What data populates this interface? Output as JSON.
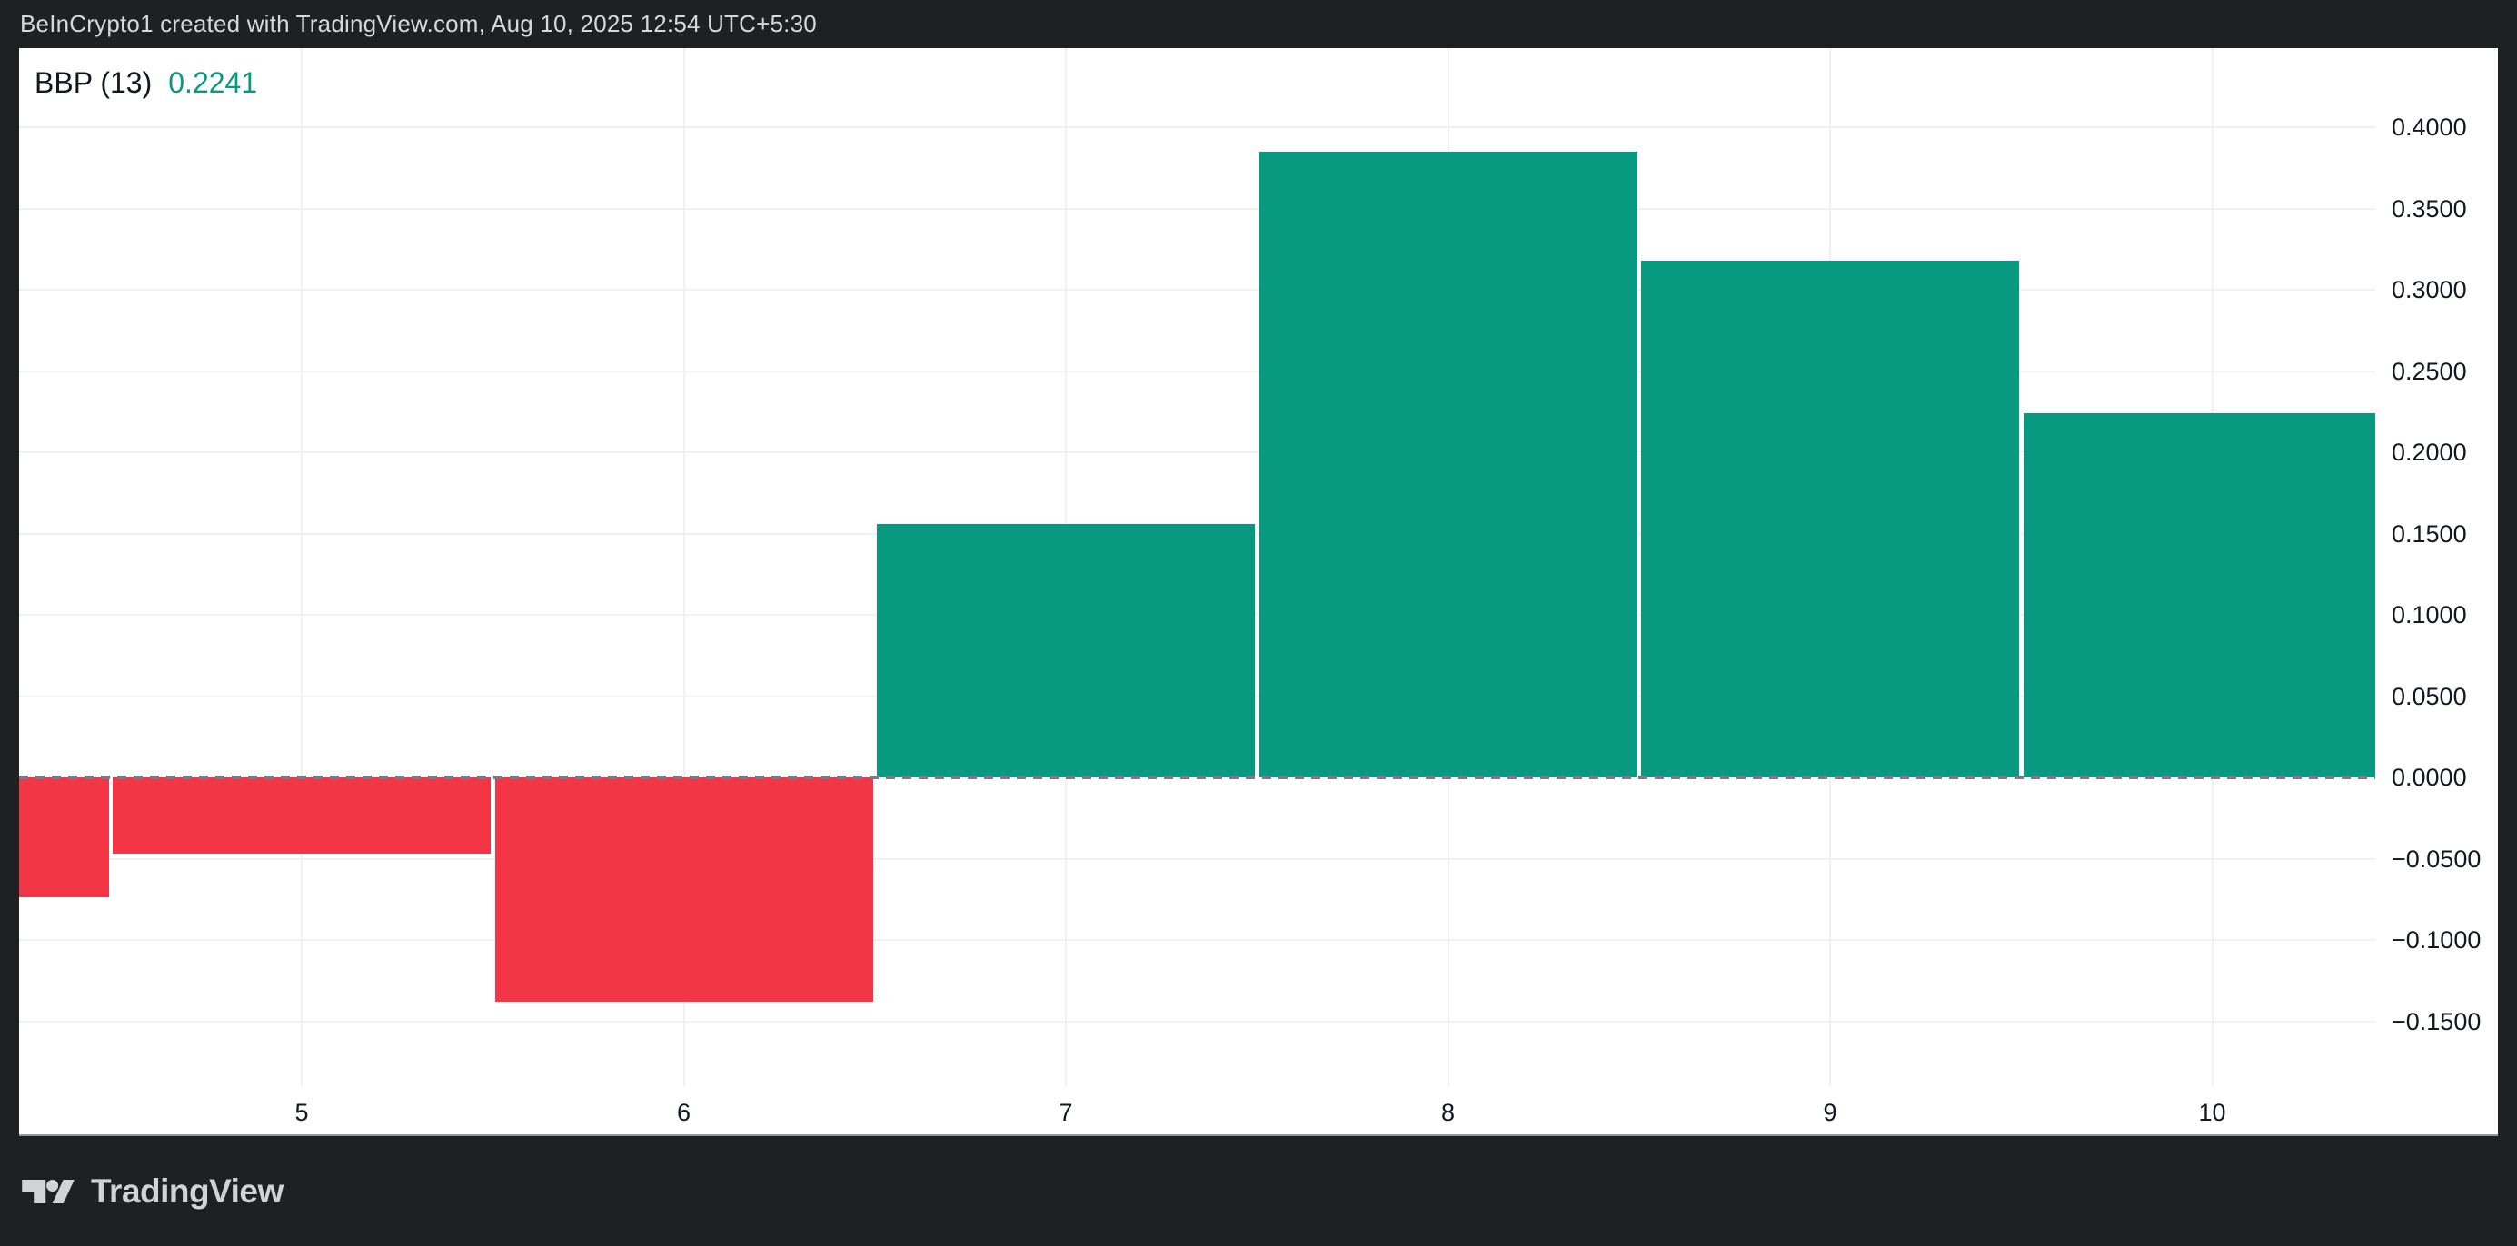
{
  "header": {
    "title": "BeInCrypto1 created with TradingView.com, Aug 10, 2025 12:54 UTC+5:30"
  },
  "legend": {
    "indicator_label": "BBP (13)",
    "value": "0.2241"
  },
  "footer": {
    "brand_name": "TradingView",
    "logo_icon": "tradingview-logo"
  },
  "colors": {
    "frame_background": "#1E2022",
    "panel_background": "#FFFFFF",
    "positive": "#089981",
    "negative": "#F23645",
    "grid": "#F0F1F2",
    "zero_line": "#787B86",
    "axis_text": "#131722",
    "header_text": "#D6D8DA",
    "footer_text": "#D2D3D5",
    "legend_value": "#089981"
  },
  "chart_data": {
    "type": "bar",
    "title": "BBP (13) Bull Bear Power histogram",
    "series_name": "BBP",
    "x": [
      4,
      5,
      6,
      7,
      8,
      9,
      10
    ],
    "values": [
      -0.074,
      -0.047,
      -0.138,
      0.156,
      0.385,
      0.318,
      0.2241
    ],
    "bar_polarity_colors": {
      "positive": "#089981",
      "negative": "#F23645"
    },
    "x_ticks": [
      {
        "v": 5,
        "label": "5"
      },
      {
        "v": 6,
        "label": "6"
      },
      {
        "v": 7,
        "label": "7"
      },
      {
        "v": 8,
        "label": "8"
      },
      {
        "v": 9,
        "label": "9"
      },
      {
        "v": 10,
        "label": "10"
      }
    ],
    "y_ticks": [
      {
        "v": 0.4,
        "label": "0.4000"
      },
      {
        "v": 0.35,
        "label": "0.3500"
      },
      {
        "v": 0.3,
        "label": "0.3000"
      },
      {
        "v": 0.25,
        "label": "0.2500"
      },
      {
        "v": 0.2,
        "label": "0.2000"
      },
      {
        "v": 0.15,
        "label": "0.1500"
      },
      {
        "v": 0.1,
        "label": "0.1000"
      },
      {
        "v": 0.05,
        "label": "0.0500"
      },
      {
        "v": 0.0,
        "label": "0.0000"
      },
      {
        "v": -0.05,
        "label": "−0.0500"
      },
      {
        "v": -0.1,
        "label": "−0.1000"
      },
      {
        "v": -0.15,
        "label": "−0.1500"
      }
    ],
    "ylim": [
      -0.1875,
      0.4466
    ],
    "xlim": [
      4.26,
      10.43
    ],
    "grid": true,
    "zero_line_style": "dashed",
    "legend_position": "top-left"
  }
}
